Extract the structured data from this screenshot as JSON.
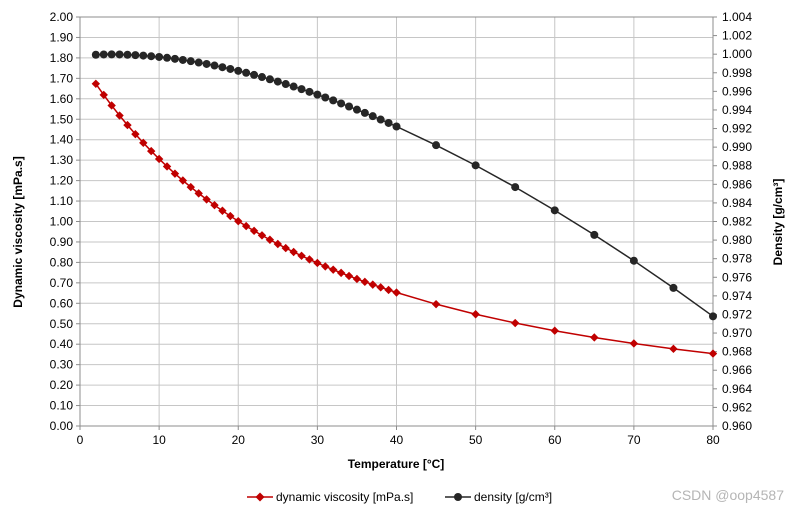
{
  "chart_data": {
    "type": "line",
    "xlabel": "Temperature  [°C]",
    "ylabel": "Dynamic viscosity [mPa.s]",
    "y2label": "Density  [g/cm³]",
    "xlim": [
      0,
      80
    ],
    "xticks": [
      0,
      10,
      20,
      30,
      40,
      50,
      60,
      70,
      80
    ],
    "ylim": [
      0,
      2
    ],
    "yticks": [
      "0.00",
      "0.10",
      "0.20",
      "0.30",
      "0.40",
      "0.50",
      "0.60",
      "0.70",
      "0.80",
      "0.90",
      "1.00",
      "1.10",
      "1.20",
      "1.30",
      "1.40",
      "1.50",
      "1.60",
      "1.70",
      "1.80",
      "1.90",
      "2.00"
    ],
    "y2lim": [
      0.96,
      1.004
    ],
    "y2ticks": [
      "0.960",
      "0.962",
      "0.964",
      "0.966",
      "0.968",
      "0.970",
      "0.972",
      "0.974",
      "0.976",
      "0.978",
      "0.980",
      "0.982",
      "0.984",
      "0.986",
      "0.988",
      "0.990",
      "0.992",
      "0.994",
      "0.996",
      "0.998",
      "1.000",
      "1.002",
      "1.004"
    ],
    "grid": true,
    "legend_position": "bottom",
    "series": [
      {
        "name": "dynamic viscosity [mPa.s]",
        "axis": "left",
        "color": "#c00000",
        "marker": "diamond",
        "x": [
          2,
          3,
          4,
          5,
          6,
          7,
          8,
          9,
          10,
          11,
          12,
          13,
          14,
          15,
          16,
          17,
          18,
          19,
          20,
          21,
          22,
          23,
          24,
          25,
          26,
          27,
          28,
          29,
          30,
          31,
          32,
          33,
          34,
          35,
          36,
          37,
          38,
          39,
          40,
          45,
          50,
          55,
          60,
          65,
          70,
          75,
          80
        ],
        "values": [
          1.6735,
          1.619,
          1.5673,
          1.5182,
          1.4715,
          1.4271,
          1.3847,
          1.3444,
          1.3059,
          1.2692,
          1.234,
          1.2005,
          1.1683,
          1.1375,
          1.1081,
          1.0798,
          1.0526,
          1.0266,
          1.0016,
          0.9775,
          0.9544,
          0.9321,
          0.9107,
          0.89,
          0.8701,
          0.8509,
          0.8324,
          0.8145,
          0.7972,
          0.7805,
          0.7644,
          0.7488,
          0.7337,
          0.7191,
          0.705,
          0.6913,
          0.678,
          0.6652,
          0.6527,
          0.5958,
          0.5465,
          0.5036,
          0.466,
          0.4329,
          0.4035,
          0.3774,
          0.354
        ]
      },
      {
        "name": "density [g/cm³]",
        "axis": "right",
        "color": "#262626",
        "marker": "circle",
        "x": [
          2,
          3,
          4,
          5,
          6,
          7,
          8,
          9,
          10,
          11,
          12,
          13,
          14,
          15,
          16,
          17,
          18,
          19,
          20,
          21,
          22,
          23,
          24,
          25,
          26,
          27,
          28,
          29,
          30,
          31,
          32,
          33,
          34,
          35,
          36,
          37,
          38,
          39,
          40,
          45,
          50,
          55,
          60,
          65,
          70,
          75,
          80
        ],
        "values": [
          0.99994,
          0.99997,
          0.99998,
          0.99997,
          0.99994,
          0.9999,
          0.99985,
          0.99978,
          0.9997,
          0.99961,
          0.9995,
          0.99938,
          0.99925,
          0.9991,
          0.99895,
          0.99878,
          0.9986,
          0.99841,
          0.99821,
          0.998,
          0.99777,
          0.99754,
          0.9973,
          0.99705,
          0.99679,
          0.99652,
          0.99624,
          0.99595,
          0.99565,
          0.99534,
          0.99503,
          0.9947,
          0.99437,
          0.99403,
          0.99368,
          0.99333,
          0.99297,
          0.9926,
          0.99222,
          0.99021,
          0.98804,
          0.9857,
          0.9832,
          0.98056,
          0.97778,
          0.97486,
          0.9718
        ]
      }
    ]
  },
  "watermark": "CSDN @oop4587"
}
